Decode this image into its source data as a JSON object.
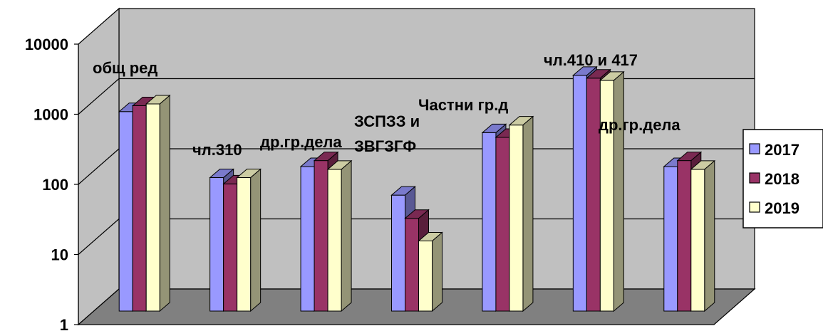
{
  "chart_data": {
    "type": "bar",
    "style": "3d-clustered-column",
    "scale": "log",
    "ylim": [
      1,
      10000
    ],
    "y_ticks": [
      "1",
      "10",
      "100",
      "1000",
      "10000"
    ],
    "categories": [
      "общ ред",
      "чл.310",
      "др.гр.дела",
      "ЗСПЗЗ и ЗВГЗГФ",
      "Частни гр.д",
      "чл.410 и 417",
      "др.гр.дела"
    ],
    "series": [
      {
        "name": "2017",
        "color": "#9999ff",
        "values": [
          700,
          80,
          115,
          45,
          350,
          2300,
          115
        ]
      },
      {
        "name": "2018",
        "color": "#993366",
        "values": [
          850,
          65,
          140,
          21,
          300,
          2100,
          140
        ]
      },
      {
        "name": "2019",
        "color": "#ffffcc",
        "values": [
          900,
          80,
          105,
          10,
          450,
          1950,
          105
        ]
      }
    ],
    "legend_position": "right",
    "grid": true,
    "wall_color": "#c0c0c0",
    "floor_color": "#808080"
  }
}
